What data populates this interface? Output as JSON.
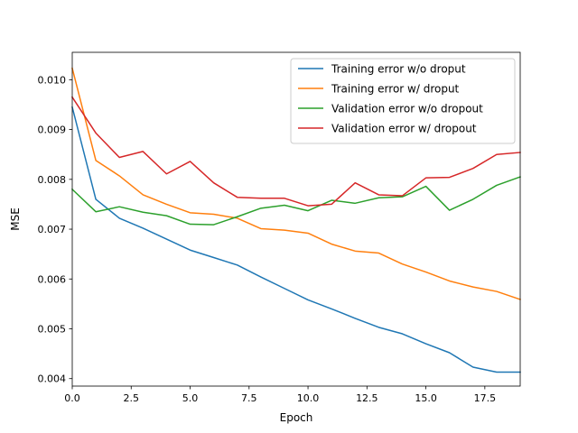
{
  "chart_data": {
    "type": "line",
    "title": "",
    "xlabel": "Epoch",
    "ylabel": "MSE",
    "xlim": [
      0,
      19
    ],
    "ylim": [
      0.00385,
      0.01055
    ],
    "xticks": [
      0.0,
      2.5,
      5.0,
      7.5,
      10.0,
      12.5,
      15.0,
      17.5
    ],
    "xtick_labels": [
      "0.0",
      "2.5",
      "5.0",
      "7.5",
      "10.0",
      "12.5",
      "15.0",
      "17.5"
    ],
    "yticks": [
      0.004,
      0.005,
      0.006,
      0.007,
      0.008,
      0.009,
      0.01
    ],
    "ytick_labels": [
      "0.004",
      "0.005",
      "0.006",
      "0.007",
      "0.008",
      "0.009",
      "0.010"
    ],
    "grid": false,
    "legend_position": "top-right",
    "x": [
      0,
      1,
      2,
      3,
      4,
      5,
      6,
      7,
      8,
      9,
      10,
      11,
      12,
      13,
      14,
      15,
      16,
      17,
      18,
      19
    ],
    "series": [
      {
        "name": "Training error w/o droput",
        "color": "#1f77b4",
        "values": [
          0.00945,
          0.0076,
          0.00722,
          0.00702,
          0.0068,
          0.00658,
          0.00643,
          0.00628,
          0.00604,
          0.00581,
          0.00558,
          0.0054,
          0.00521,
          0.00503,
          0.0049,
          0.0047,
          0.00452,
          0.00423,
          0.00413,
          0.00413
        ]
      },
      {
        "name": "Training error w/ droput",
        "color": "#ff7f0e",
        "values": [
          0.01023,
          0.00838,
          0.00807,
          0.00769,
          0.0075,
          0.00733,
          0.0073,
          0.00722,
          0.00701,
          0.00698,
          0.00692,
          0.0067,
          0.00656,
          0.00652,
          0.0063,
          0.00614,
          0.00596,
          0.00584,
          0.00575,
          0.00559
        ]
      },
      {
        "name": "Validation error w/o dropout",
        "color": "#2ca02c",
        "values": [
          0.0078,
          0.00735,
          0.00745,
          0.00734,
          0.00727,
          0.0071,
          0.00709,
          0.00725,
          0.00742,
          0.00748,
          0.00737,
          0.00758,
          0.00752,
          0.00763,
          0.00765,
          0.00786,
          0.00738,
          0.0076,
          0.00788,
          0.00805
        ]
      },
      {
        "name": "Validation error w/ dropout",
        "color": "#d62728",
        "values": [
          0.00965,
          0.00893,
          0.00844,
          0.00856,
          0.00811,
          0.00836,
          0.00793,
          0.00764,
          0.00762,
          0.00762,
          0.00747,
          0.0075,
          0.00793,
          0.00769,
          0.00767,
          0.00803,
          0.00804,
          0.00822,
          0.0085,
          0.00854
        ]
      }
    ]
  }
}
